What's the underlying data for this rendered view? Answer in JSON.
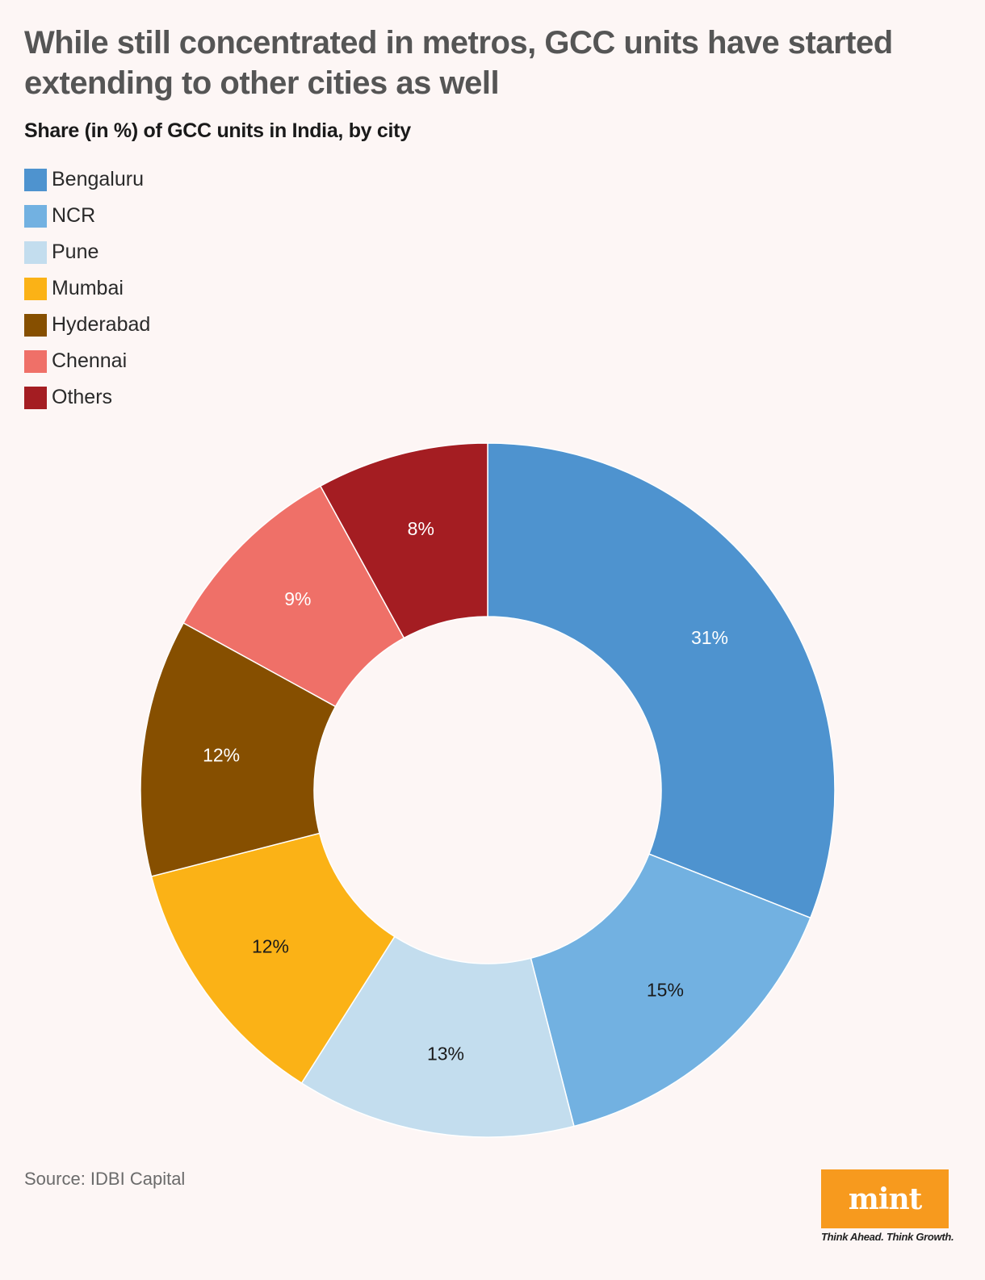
{
  "title": "While still concentrated in metros, GCC units have started extending to other cities as well",
  "subtitle": "Share (in %) of GCC units in India, by city",
  "source": "Source: IDBI Capital",
  "branding": {
    "logo_text": "mint",
    "tagline": "Think Ahead. Think Growth.",
    "logo_color": "#f79a1e"
  },
  "chart_data": {
    "type": "pie",
    "donut": true,
    "categories": [
      "Bengaluru",
      "NCR",
      "Pune",
      "Mumbai",
      "Hyderabad",
      "Chennai",
      "Others"
    ],
    "values": [
      31,
      15,
      13,
      12,
      12,
      9,
      8
    ],
    "labels": [
      "31%",
      "15%",
      "13%",
      "12%",
      "12%",
      "9%",
      "8%"
    ],
    "colors": [
      "#4e93cf",
      "#72b1e1",
      "#c3ddee",
      "#fbb216",
      "#864f00",
      "#ef7068",
      "#a41d22"
    ],
    "label_colors": [
      "#ffffff",
      "#1a1a1a",
      "#1a1a1a",
      "#1a1a1a",
      "#ffffff",
      "#ffffff",
      "#ffffff"
    ],
    "unit": "%",
    "legend_position": "top-left"
  }
}
